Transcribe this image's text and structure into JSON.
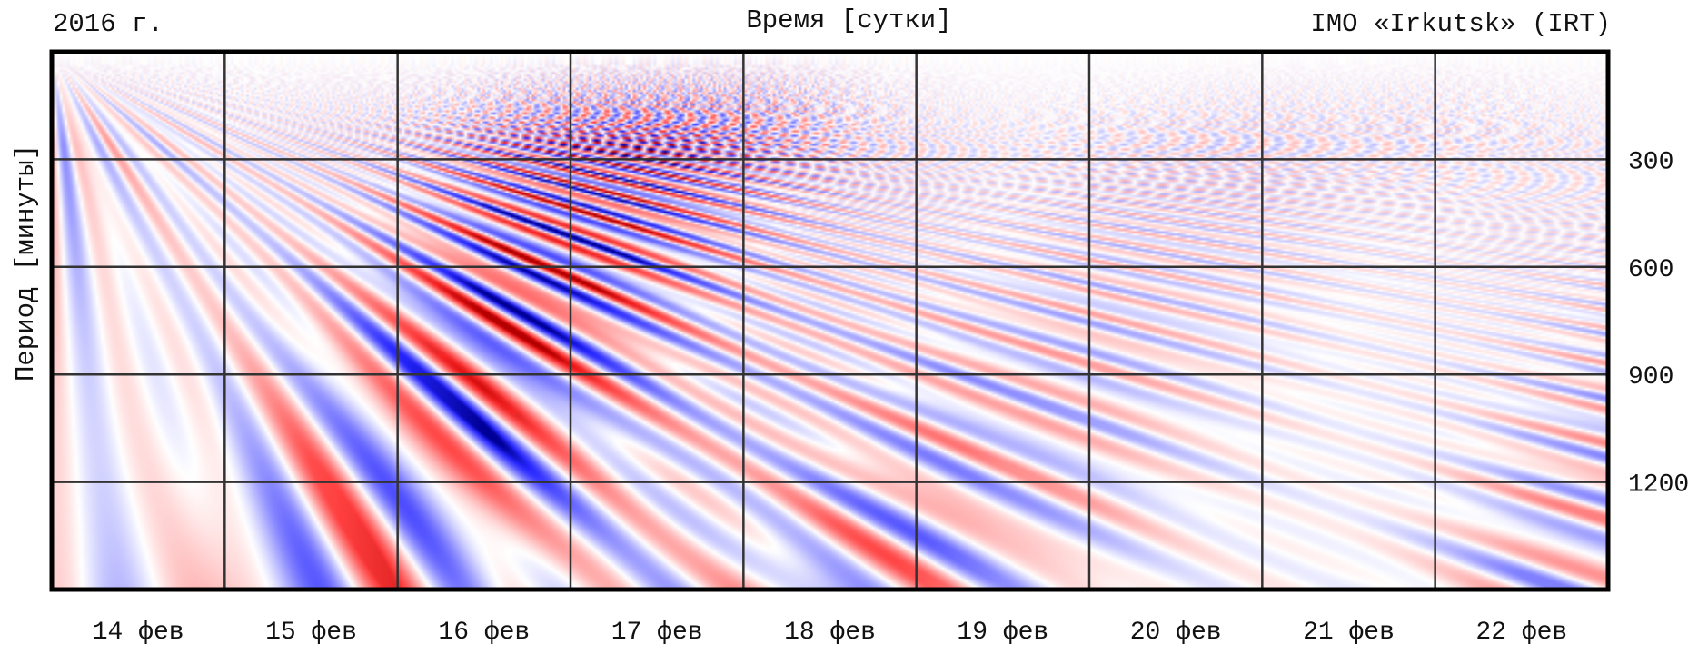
{
  "header": {
    "year": "2016 г.",
    "x_axis_title": "Время [сутки]",
    "station": "IMO «Irkutsk» (IRT)"
  },
  "y_axis_title": "Период [минуты]",
  "colors": {
    "positive": "#e00000",
    "negative": "#0000e0",
    "zero": "#ffffff",
    "grid": "#333333",
    "frame": "#000000"
  },
  "chart_data": {
    "type": "heatmap",
    "x_tick_labels": [
      "14 фев",
      "15 фев",
      "16 фев",
      "17 фев",
      "18 фев",
      "19 фев",
      "20 фев",
      "21 фев",
      "22 фев"
    ],
    "y_ticks": [
      300,
      600,
      900,
      1200
    ],
    "y_tick_labels": [
      "300",
      "600",
      "900",
      "1200"
    ],
    "ylim": [
      0,
      1500
    ],
    "y_axis_side": "right",
    "grid": true,
    "colormap": "blue-white-red diverging",
    "amplitude_by_day": [
      {
        "day": "14 фев",
        "relative_amplitude": 0.45
      },
      {
        "day": "15 фев",
        "relative_amplitude": 0.7
      },
      {
        "day": "16 фев",
        "relative_amplitude": 1.0
      },
      {
        "day": "17 фев",
        "relative_amplitude": 1.0
      },
      {
        "day": "18 фев",
        "relative_amplitude": 0.9
      },
      {
        "day": "19 фев",
        "relative_amplitude": 0.45
      },
      {
        "day": "20 фев",
        "relative_amplitude": 0.3
      },
      {
        "day": "21 фев",
        "relative_amplitude": 0.25
      },
      {
        "day": "22 фев",
        "relative_amplitude": 0.5
      }
    ]
  }
}
